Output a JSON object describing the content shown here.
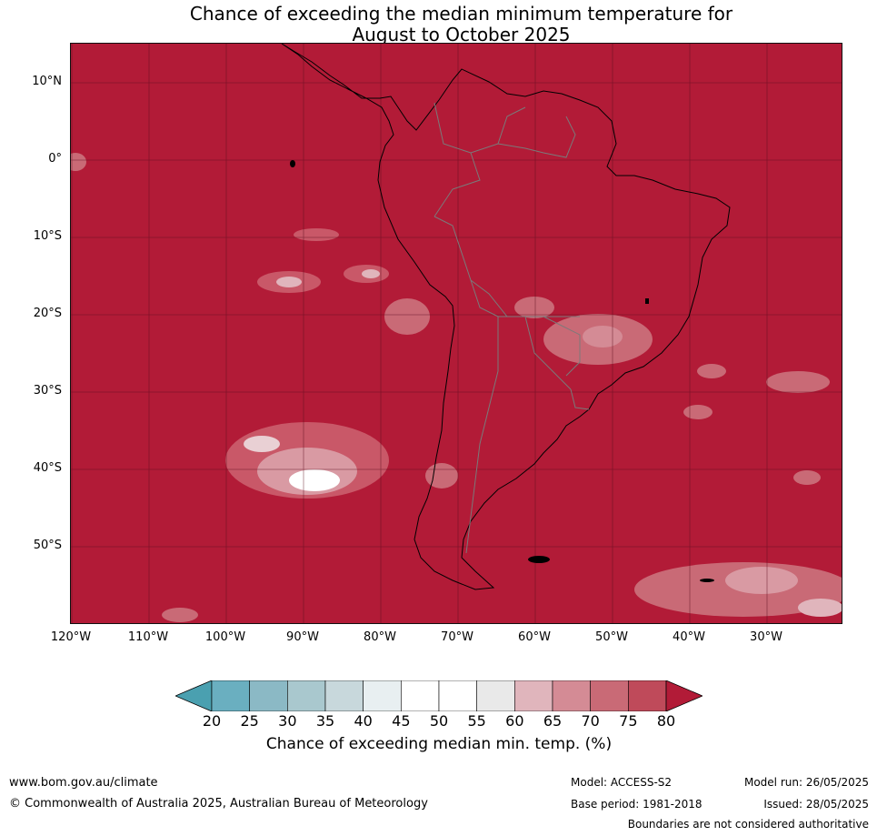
{
  "title_line1": "Chance of exceeding the median minimum temperature for",
  "title_line2": "August to October 2025",
  "lat_labels": [
    "10°N",
    "0°",
    "10°S",
    "20°S",
    "30°S",
    "40°S",
    "50°S"
  ],
  "lon_labels": [
    "120°W",
    "110°W",
    "100°W",
    "90°W",
    "80°W",
    "70°W",
    "60°W",
    "50°W",
    "40°W",
    "30°W"
  ],
  "colorbar": {
    "ticks": [
      "20",
      "25",
      "30",
      "35",
      "40",
      "45",
      "50",
      "55",
      "60",
      "65",
      "70",
      "75",
      "80"
    ],
    "colors": [
      "#4aa0b0",
      "#6aafc0",
      "#8bb9c5",
      "#a9c8ce",
      "#c8d8dc",
      "#e8eff1",
      "#ffffff",
      "#ffffff",
      "#e9e9e9",
      "#e0b5bc",
      "#d48b95",
      "#c96a76",
      "#bf4a5a",
      "#b21b37"
    ],
    "label": "Chance of exceeding median min. temp. (%)"
  },
  "footer": {
    "url": "www.bom.gov.au/climate",
    "copyright": "© Commonwealth of Australia 2025, Australian Bureau of Meteorology",
    "model": "Model: ACCESS-S2",
    "base_period": "Base period: 1981-2018",
    "model_run": "Model run: 26/05/2025",
    "issued": "Issued: 28/05/2025",
    "disclaimer": "Boundaries are not considered authoritative"
  }
}
